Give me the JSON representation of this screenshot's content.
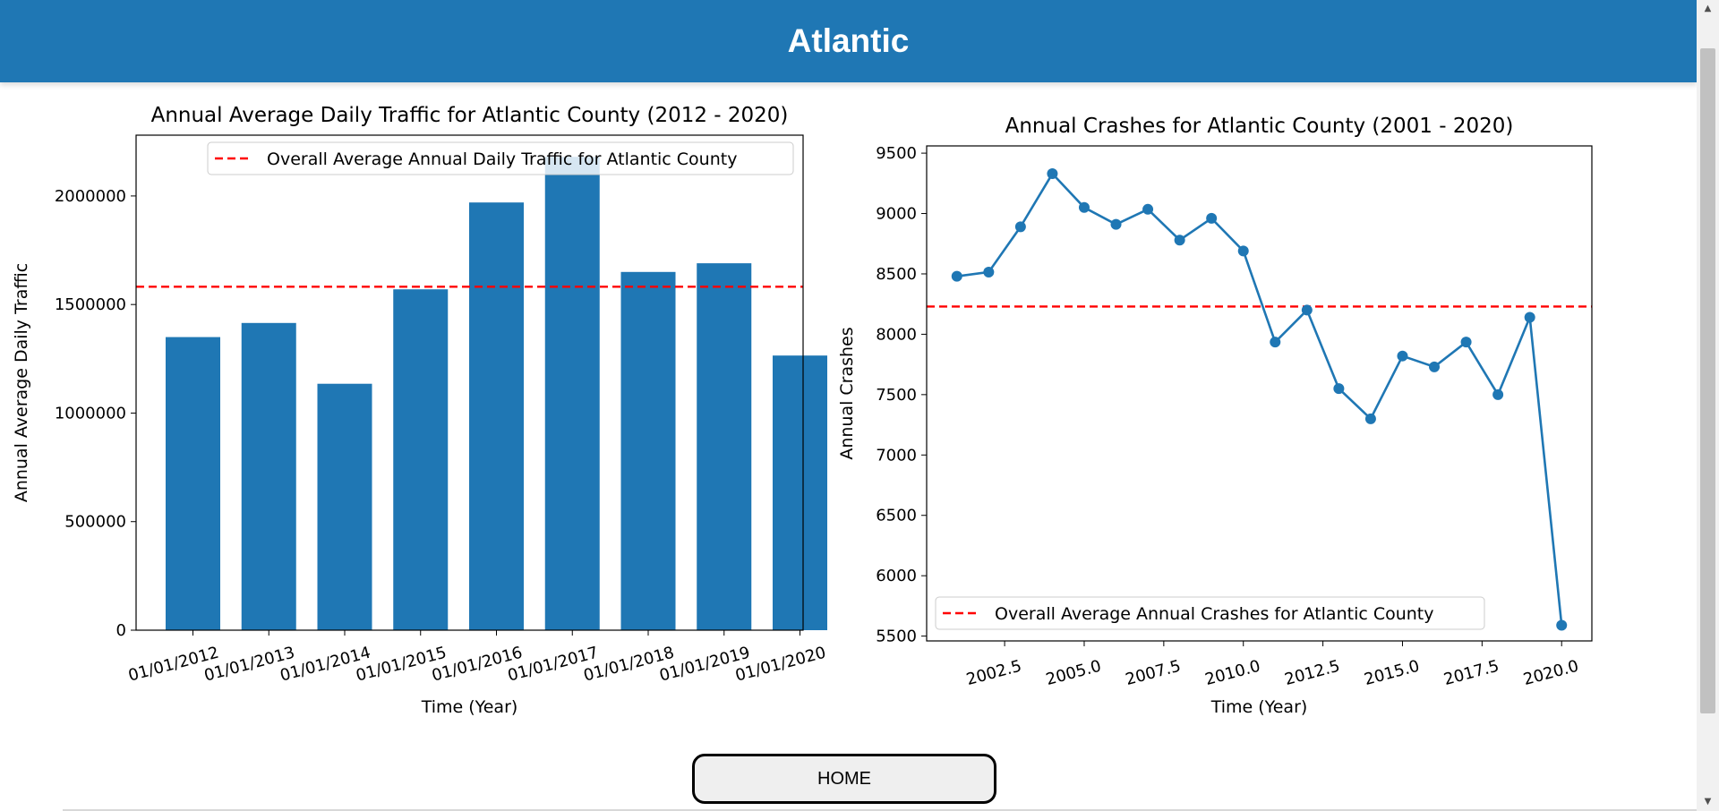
{
  "header": {
    "title": "Atlantic"
  },
  "home_button": {
    "label": "HOME"
  },
  "colors": {
    "header_bg": "#1f77b4",
    "series": "#1f77b4",
    "average_line": "#ff0000"
  },
  "chart_data": [
    {
      "type": "bar",
      "title": "Annual Average Daily Traffic for Atlantic County (2012 - 2020)",
      "xlabel": "Time (Year)",
      "ylabel": "Annual Average Daily Traffic",
      "categories": [
        "01/01/2012",
        "01/01/2013",
        "01/01/2014",
        "01/01/2015",
        "01/01/2016",
        "01/01/2017",
        "01/01/2018",
        "01/01/2019",
        "01/01/2020"
      ],
      "values": [
        1350000,
        1415000,
        1135000,
        1570000,
        1970000,
        2180000,
        1650000,
        1690000,
        1265000
      ],
      "ylim": [
        0,
        2280000
      ],
      "yticks": [
        0,
        500000,
        1000000,
        1500000,
        2000000
      ],
      "ytick_labels": [
        "0",
        "500000",
        "1000000",
        "1500000",
        "2000000"
      ],
      "average": 1582000,
      "legend": {
        "label": "Overall Average Annual Daily Traffic for Atlantic County",
        "placement": "top-right"
      }
    },
    {
      "type": "line",
      "title": "Annual Crashes for Atlantic County (2001 - 2020)",
      "xlabel": "Time (Year)",
      "ylabel": "Annual Crashes",
      "x": [
        2001,
        2002,
        2003,
        2004,
        2005,
        2006,
        2007,
        2008,
        2009,
        2010,
        2011,
        2012,
        2013,
        2014,
        2015,
        2016,
        2017,
        2018,
        2019,
        2020
      ],
      "values": [
        8480,
        8515,
        8890,
        9330,
        9050,
        8910,
        9035,
        8780,
        8960,
        8690,
        7935,
        8200,
        7550,
        7300,
        7820,
        7730,
        7935,
        7500,
        8140,
        5590
      ],
      "xlim": [
        2000.05,
        2020.95
      ],
      "ylim": [
        5460,
        9560
      ],
      "xticks": [
        2002.5,
        2005.0,
        2007.5,
        2010.0,
        2012.5,
        2015.0,
        2017.5,
        2020.0
      ],
      "xtick_labels": [
        "2002.5",
        "2005.0",
        "2007.5",
        "2010.0",
        "2012.5",
        "2015.0",
        "2017.5",
        "2020.0"
      ],
      "yticks": [
        5500,
        6000,
        6500,
        7000,
        7500,
        8000,
        8500,
        9000,
        9500
      ],
      "ytick_labels": [
        "5500",
        "6000",
        "6500",
        "7000",
        "7500",
        "8000",
        "8500",
        "9000",
        "9500"
      ],
      "average": 8230,
      "legend": {
        "label": "Overall Average Annual Crashes for Atlantic County",
        "placement": "bottom-left"
      }
    }
  ]
}
